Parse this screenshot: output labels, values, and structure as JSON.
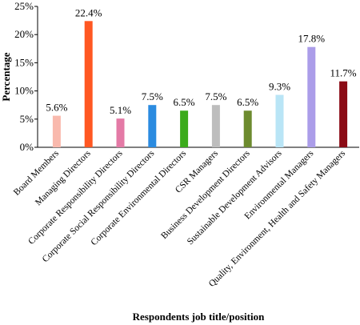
{
  "chart_data": {
    "type": "bar",
    "x_label": "Respondents job title/position",
    "y_label": "Percentage",
    "categories": [
      "Board Members",
      "Managing Directors",
      "Corporate Responsibility Directors",
      "Corporate Social Responsibility Directors",
      "Corporate Environmental Directors",
      "CSR Managers",
      "Business Development Directors",
      "Sustainable Development Advisors",
      "Environmental Managers",
      "Quality, Environment, Health and Safety Managers"
    ],
    "values": [
      5.6,
      22.4,
      5.1,
      7.5,
      6.5,
      7.5,
      6.5,
      9.3,
      17.8,
      11.7
    ],
    "value_labels": [
      "5.6%",
      "22.4%",
      "5.1%",
      "7.5%",
      "6.5%",
      "7.5%",
      "6.5%",
      "9.3%",
      "17.8%",
      "11.7%"
    ],
    "colors": [
      "#f9b9ad",
      "#ff5722",
      "#e47aa6",
      "#2b8be0",
      "#3cab1c",
      "#bdbdbd",
      "#6d8b2f",
      "#b9e5f6",
      "#ab9de9",
      "#8b0b15"
    ],
    "ylim": [
      0,
      25
    ],
    "yticks": [
      {
        "value": 0,
        "label": "0%"
      },
      {
        "value": 5,
        "label": "5%"
      },
      {
        "value": 10,
        "label": "10%"
      },
      {
        "value": 15,
        "label": "15%"
      },
      {
        "value": 20,
        "label": "20%"
      },
      {
        "value": 25,
        "label": "25%"
      }
    ]
  }
}
